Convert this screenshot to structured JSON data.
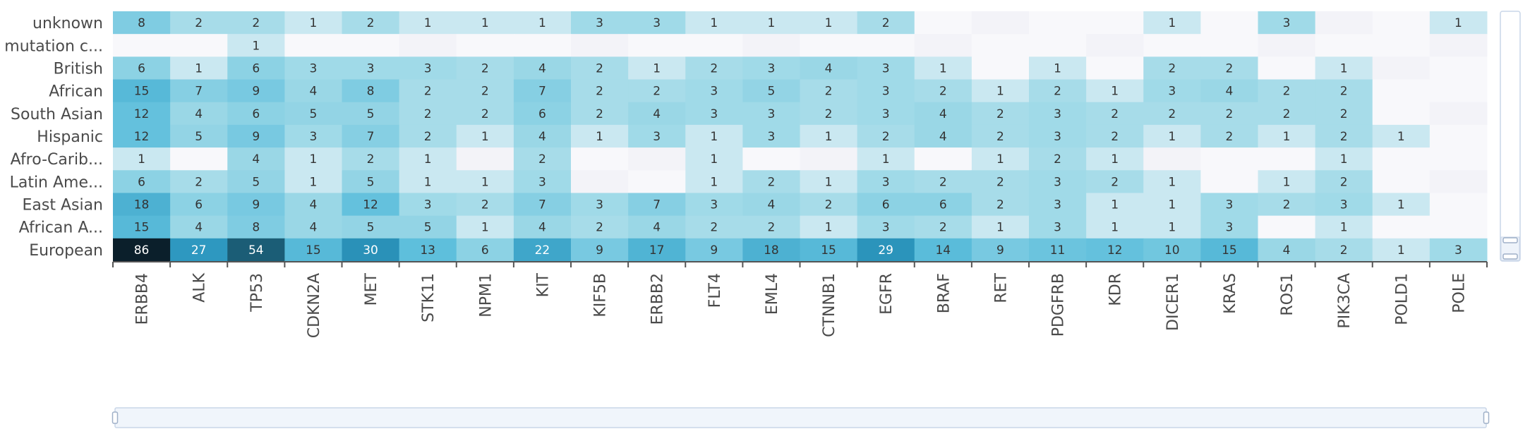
{
  "chart_data": {
    "type": "heatmap",
    "title": "",
    "xlabel": "",
    "ylabel": "",
    "x_categories": [
      "ERBB4",
      "ALK",
      "TP53",
      "CDKN2A",
      "MET",
      "STK11",
      "NPM1",
      "KIT",
      "KIF5B",
      "ERBB2",
      "FLT4",
      "EML4",
      "CTNNB1",
      "EGFR",
      "BRAF",
      "RET",
      "PDGFRB",
      "KDR",
      "DICER1",
      "KRAS",
      "ROS1",
      "PIK3CA",
      "POLD1",
      "POLE"
    ],
    "y_categories": [
      "unknown",
      "mutation c...",
      "British",
      "African",
      "South Asian",
      "Hispanic",
      "Afro-Carib...",
      "Latin Ame...",
      "East Asian",
      "African A...",
      "European"
    ],
    "values": [
      [
        8,
        2,
        2,
        1,
        2,
        1,
        1,
        1,
        3,
        3,
        1,
        1,
        1,
        2,
        null,
        null,
        null,
        null,
        1,
        null,
        3,
        null,
        null,
        1
      ],
      [
        null,
        null,
        1,
        null,
        null,
        null,
        null,
        null,
        null,
        null,
        null,
        null,
        null,
        null,
        null,
        null,
        null,
        null,
        null,
        null,
        null,
        null,
        null,
        null
      ],
      [
        6,
        1,
        6,
        3,
        3,
        3,
        2,
        4,
        2,
        1,
        2,
        3,
        4,
        3,
        1,
        null,
        1,
        null,
        2,
        2,
        null,
        1,
        null,
        null
      ],
      [
        15,
        7,
        9,
        4,
        8,
        2,
        2,
        7,
        2,
        2,
        3,
        5,
        2,
        3,
        2,
        1,
        2,
        1,
        3,
        4,
        2,
        2,
        null,
        null
      ],
      [
        12,
        4,
        6,
        5,
        5,
        2,
        2,
        6,
        2,
        4,
        3,
        3,
        2,
        3,
        4,
        2,
        3,
        2,
        2,
        2,
        2,
        2,
        null,
        null
      ],
      [
        12,
        5,
        9,
        3,
        7,
        2,
        1,
        4,
        1,
        3,
        1,
        3,
        1,
        2,
        4,
        2,
        3,
        2,
        1,
        2,
        1,
        2,
        1,
        null
      ],
      [
        1,
        null,
        4,
        1,
        2,
        1,
        null,
        2,
        null,
        null,
        1,
        null,
        null,
        1,
        null,
        1,
        2,
        1,
        null,
        null,
        null,
        1,
        null,
        null
      ],
      [
        6,
        2,
        5,
        1,
        5,
        1,
        1,
        3,
        null,
        null,
        1,
        2,
        1,
        3,
        2,
        2,
        3,
        2,
        1,
        null,
        1,
        2,
        null,
        null
      ],
      [
        18,
        6,
        9,
        4,
        12,
        3,
        2,
        7,
        3,
        7,
        3,
        4,
        2,
        6,
        6,
        2,
        3,
        1,
        1,
        3,
        2,
        3,
        1,
        null
      ],
      [
        15,
        4,
        8,
        4,
        5,
        5,
        1,
        4,
        2,
        4,
        2,
        2,
        1,
        3,
        2,
        1,
        3,
        1,
        1,
        3,
        null,
        1,
        null,
        null
      ],
      [
        86,
        27,
        54,
        15,
        30,
        13,
        6,
        22,
        9,
        17,
        9,
        18,
        15,
        29,
        14,
        9,
        11,
        12,
        10,
        15,
        4,
        2,
        1,
        3
      ]
    ],
    "value_range": [
      0,
      86
    ],
    "color_scale": [
      "#f7f7fb",
      "#a9dde9",
      "#5ebfdc",
      "#2c97bf",
      "#1e6a86",
      "#0b1f2b"
    ],
    "zoom_slider": {
      "orientation": "horizontal",
      "visible": true
    },
    "vertical_scroll": {
      "orientation": "vertical",
      "visible": true
    }
  }
}
